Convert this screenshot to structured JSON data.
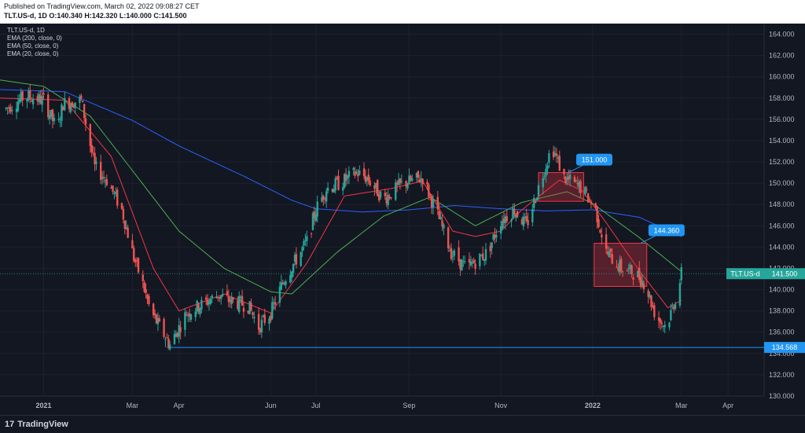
{
  "header": {
    "published": "Published on TradingView.com, March 02, 2022 09:08:27 CET",
    "ohlc": "TLT.US-d, 1D  O:140.340  H:142.320  L:140.000  C:141.500"
  },
  "legend": {
    "symbol": "TLT.US-d, 1D",
    "ema200": "EMA (200, close, 0)",
    "ema50": "EMA (50, close, 0)",
    "ema20": "EMA (20, close, 0)"
  },
  "footer": {
    "brand": "TradingView",
    "logo": "tv-logo-icon"
  },
  "colors": {
    "background": "#131722",
    "grid": "#1e222d",
    "up": "#26a69a",
    "down": "#ef5350",
    "ema200": "#2962ff",
    "ema50": "#4caf50",
    "ema20": "#f23645",
    "label": "#2196f3"
  },
  "chart_data": {
    "type": "candlestick",
    "symbol": "TLT.US-d",
    "ylim": [
      130,
      165
    ],
    "y_ticks": [
      130,
      132,
      134,
      136,
      138,
      140,
      142,
      144,
      146,
      148,
      150,
      152,
      154,
      156,
      158,
      160,
      162,
      164
    ],
    "y_tick_labels": [
      "130.000",
      "132.000",
      "134.000",
      "136.000",
      "138.000",
      "140.000",
      "142.000",
      "144.000",
      "146.000",
      "148.000",
      "150.000",
      "152.000",
      "154.000",
      "156.000",
      "158.000",
      "160.000",
      "162.000",
      "164.000"
    ],
    "x_ticks": [
      "2021-01-01",
      "2021-03-01",
      "2021-04-01",
      "2021-06-01",
      "2021-07-01",
      "2021-09-01",
      "2021-11-01",
      "2022-01-01",
      "2022-03-01",
      "2022-04-01"
    ],
    "x_tick_labels": [
      "2021",
      "Mar",
      "Apr",
      "Jun",
      "Jul",
      "Sep",
      "Nov",
      "2022",
      "Mar",
      "Apr"
    ],
    "xlim": [
      "2020-12-03",
      "2022-04-25"
    ],
    "price_path": [
      [
        "2020-12-07",
        157.0
      ],
      [
        "2020-12-20",
        158.2
      ],
      [
        "2021-01-01",
        157.8
      ],
      [
        "2021-01-10",
        155.0
      ],
      [
        "2021-01-14",
        157.5
      ],
      [
        "2021-01-26",
        157.8
      ],
      [
        "2021-02-04",
        151.5
      ],
      [
        "2021-02-12",
        150.3
      ],
      [
        "2021-02-22",
        147.5
      ],
      [
        "2021-03-02",
        143.0
      ],
      [
        "2021-03-08",
        140.5
      ],
      [
        "2021-03-13",
        138.0
      ],
      [
        "2021-03-19",
        136.5
      ],
      [
        "2021-03-26",
        134.8
      ],
      [
        "2021-04-06",
        137.8
      ],
      [
        "2021-04-15",
        138.5
      ],
      [
        "2021-04-27",
        139.5
      ],
      [
        "2021-05-04",
        139.0
      ],
      [
        "2021-05-17",
        138.5
      ],
      [
        "2021-05-24",
        136.5
      ],
      [
        "2021-06-01",
        137.8
      ],
      [
        "2021-06-10",
        141.0
      ],
      [
        "2021-06-25",
        144.5
      ],
      [
        "2021-07-01",
        147.5
      ],
      [
        "2021-07-08",
        149.5
      ],
      [
        "2021-07-17",
        150.0
      ],
      [
        "2021-07-28",
        151.0
      ],
      [
        "2021-08-04",
        150.5
      ],
      [
        "2021-08-15",
        148.5
      ],
      [
        "2021-08-28",
        150.0
      ],
      [
        "2021-09-10",
        150.5
      ],
      [
        "2021-09-20",
        147.0
      ],
      [
        "2021-09-29",
        143.5
      ],
      [
        "2021-10-09",
        142.0
      ],
      [
        "2021-10-23",
        143.5
      ],
      [
        "2021-11-01",
        146.5
      ],
      [
        "2021-11-10",
        147.5
      ],
      [
        "2021-11-18",
        146.0
      ],
      [
        "2021-11-28",
        150.5
      ],
      [
        "2021-12-05",
        153.5
      ],
      [
        "2021-12-13",
        150.5
      ],
      [
        "2021-12-25",
        149.5
      ],
      [
        "2022-01-03",
        147.5
      ],
      [
        "2022-01-10",
        143.5
      ],
      [
        "2022-01-20",
        142.0
      ],
      [
        "2022-01-30",
        141.5
      ],
      [
        "2022-02-05",
        140.5
      ],
      [
        "2022-02-12",
        137.5
      ],
      [
        "2022-02-19",
        136.5
      ],
      [
        "2022-02-27",
        140.0
      ],
      [
        "2022-03-01",
        141.5
      ]
    ],
    "ema200_path": [
      [
        "2020-12-03",
        158.8
      ],
      [
        "2021-01-15",
        158.6
      ],
      [
        "2021-03-01",
        155.9
      ],
      [
        "2021-04-01",
        153.5
      ],
      [
        "2021-05-15",
        150.6
      ],
      [
        "2021-06-15",
        148.4
      ],
      [
        "2021-07-01",
        147.6
      ],
      [
        "2021-08-01",
        147.3
      ],
      [
        "2021-09-01",
        147.5
      ],
      [
        "2021-10-01",
        147.9
      ],
      [
        "2021-11-01",
        147.6
      ],
      [
        "2021-12-01",
        147.4
      ],
      [
        "2022-01-01",
        147.5
      ],
      [
        "2022-02-01",
        146.8
      ],
      [
        "2022-03-01",
        145.0
      ]
    ],
    "ema50_path": [
      [
        "2020-12-03",
        159.7
      ],
      [
        "2021-01-01",
        159.1
      ],
      [
        "2021-02-01",
        156.3
      ],
      [
        "2021-03-01",
        151.2
      ],
      [
        "2021-04-01",
        145.5
      ],
      [
        "2021-05-01",
        142.0
      ],
      [
        "2021-06-01",
        139.8
      ],
      [
        "2021-06-15",
        139.6
      ],
      [
        "2021-07-15",
        143.5
      ],
      [
        "2021-08-15",
        146.9
      ],
      [
        "2021-09-15",
        148.7
      ],
      [
        "2021-10-15",
        146.0
      ],
      [
        "2021-11-15",
        148.2
      ],
      [
        "2021-12-15",
        149.2
      ],
      [
        "2022-01-01",
        148.1
      ],
      [
        "2022-02-01",
        144.9
      ],
      [
        "2022-03-01",
        141.7
      ]
    ],
    "ema20_path": [
      [
        "2020-12-03",
        158.0
      ],
      [
        "2021-01-15",
        157.8
      ],
      [
        "2021-02-15",
        152.5
      ],
      [
        "2021-03-15",
        142.0
      ],
      [
        "2021-04-01",
        138.0
      ],
      [
        "2021-05-01",
        139.6
      ],
      [
        "2021-06-01",
        137.8
      ],
      [
        "2021-06-25",
        142.5
      ],
      [
        "2021-07-20",
        148.8
      ],
      [
        "2021-08-20",
        149.5
      ],
      [
        "2021-09-10",
        150.2
      ],
      [
        "2021-09-30",
        145.5
      ],
      [
        "2021-10-15",
        145.0
      ],
      [
        "2021-11-01",
        145.5
      ],
      [
        "2021-11-15",
        147.5
      ],
      [
        "2021-12-10",
        150.3
      ],
      [
        "2021-12-25",
        149.3
      ],
      [
        "2022-01-10",
        146.3
      ],
      [
        "2022-02-01",
        141.8
      ],
      [
        "2022-02-20",
        138.3
      ],
      [
        "2022-03-01",
        139.0
      ]
    ],
    "horizontal_line": {
      "value": 134.568,
      "from": "2021-03-24",
      "label": "134.568"
    },
    "current_price": {
      "value": 141.5,
      "symbol_label": "TLT.US-d",
      "price_label": "141.500"
    },
    "boxes": [
      {
        "from": "2021-11-26",
        "to": "2021-12-26",
        "low": 148.3,
        "high": 151.0
      },
      {
        "from": "2022-01-02",
        "to": "2022-02-06",
        "low": 140.3,
        "high": 144.36
      }
    ],
    "callouts": [
      {
        "date": "2021-12-19",
        "value": 151.0,
        "label": "151.000"
      },
      {
        "date": "2022-02-05",
        "value": 144.36,
        "label": "144.360"
      }
    ]
  }
}
